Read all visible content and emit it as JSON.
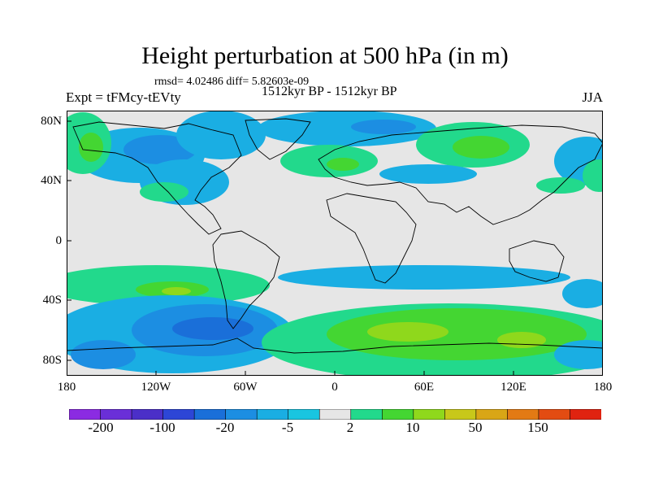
{
  "title": "Height perturbation at 500 hPa (in m)",
  "stats": "rmsd= 4.02486 diff= 5.82603e-09",
  "left_label": "Expt = tFMcy-tEVty",
  "center_label": "1512kyr BP - 1512kyr BP",
  "right_label": "JJA",
  "lat_labels": [
    "80N",
    "40N",
    "0",
    "40S",
    "80S"
  ],
  "lon_labels": [
    "180",
    "120W",
    "60W",
    "0",
    "60E",
    "120E",
    "180"
  ],
  "colorbar": {
    "labels": [
      "-200",
      "-100",
      "-20",
      "-5",
      "2",
      "10",
      "50",
      "150"
    ],
    "colors": [
      "#8b2be2",
      "#6a2fd8",
      "#4b2fc8",
      "#2d46d6",
      "#1a6fd9",
      "#1c8ee2",
      "#1aaee3",
      "#19c5e0",
      "#e6e6e6",
      "#22d98c",
      "#44d632",
      "#8fd81c",
      "#c8c81a",
      "#d9a616",
      "#e37a14",
      "#e34c12",
      "#e02310"
    ]
  },
  "colors": {
    "background_field": "#e6e6e6",
    "coastline": "#000000"
  }
}
